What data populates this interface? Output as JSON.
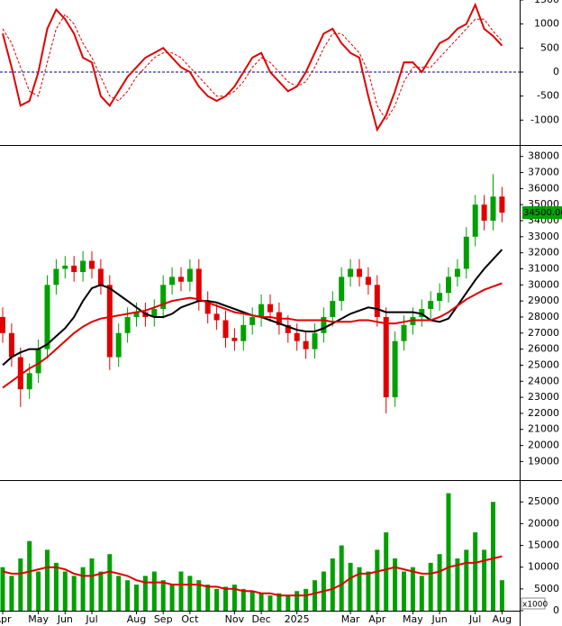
{
  "chart_data": [
    {
      "type": "line",
      "ylim": [
        -1500,
        1500
      ],
      "yticks": [
        1500,
        1000,
        500,
        0,
        -500,
        -1000
      ],
      "reference_line": {
        "value": 0,
        "color": "#00008b"
      },
      "series": [
        {
          "color": "#e00000",
          "style": "solid",
          "values": [
            800,
            100,
            -700,
            -600,
            0,
            900,
            1300,
            1100,
            800,
            300,
            200,
            -500,
            -700,
            -400,
            -100,
            100,
            300,
            400,
            500,
            300,
            100,
            0,
            -300,
            -500,
            -600,
            -500,
            -300,
            0,
            300,
            400,
            0,
            -200,
            -400,
            -300,
            0,
            400,
            800,
            900,
            600,
            400,
            300,
            -500,
            -1200,
            -900,
            -400,
            200,
            200,
            0,
            300,
            600,
            700,
            900,
            1000,
            1400,
            900,
            750,
            550
          ]
        },
        {
          "color": "#e00000",
          "style": "dashed",
          "values": [
            900,
            600,
            100,
            -400,
            -500,
            200,
            900,
            1200,
            1000,
            600,
            300,
            -100,
            -500,
            -600,
            -400,
            -100,
            100,
            300,
            400,
            400,
            300,
            100,
            -100,
            -300,
            -500,
            -500,
            -400,
            -200,
            100,
            300,
            200,
            0,
            -200,
            -300,
            -200,
            100,
            500,
            800,
            800,
            600,
            400,
            0,
            -700,
            -1000,
            -700,
            -200,
            100,
            100,
            100,
            300,
            500,
            700,
            900,
            1100,
            1100,
            850,
            650
          ]
        }
      ]
    },
    {
      "type": "candlestick",
      "ylim": [
        17900,
        38600
      ],
      "yticks": [
        38000,
        37000,
        36000,
        35000,
        34000,
        33000,
        32000,
        31000,
        30000,
        29000,
        28000,
        27000,
        26000,
        25000,
        24000,
        23000,
        22000,
        21000,
        20000,
        19000
      ],
      "up_color": "#00a000",
      "down_color": "#e00000",
      "last_value_label": {
        "value": 34500,
        "label": "34500.00",
        "color": "#00a000"
      },
      "open": [
        28000,
        27000,
        25500,
        23500,
        24500,
        26000,
        30000,
        31000,
        31200,
        30800,
        31500,
        31000,
        30000,
        25500,
        27000,
        28000,
        28300,
        28000,
        28500,
        30000,
        30500,
        30200,
        31000,
        29000,
        28200,
        27800,
        26700,
        26500,
        27500,
        28000,
        28800,
        28300,
        27500,
        27000,
        26500,
        26000,
        27000,
        28000,
        29000,
        30500,
        31000,
        30500,
        30000,
        28000,
        23000,
        26500,
        27500,
        28000,
        28500,
        29000,
        29500,
        30500,
        31000,
        33000,
        35000,
        34000,
        35500
      ],
      "high": [
        28600,
        27600,
        26100,
        25100,
        26600,
        30600,
        31600,
        31800,
        31800,
        32100,
        32100,
        31600,
        30600,
        27600,
        28600,
        28900,
        28900,
        29100,
        30600,
        31100,
        31100,
        31600,
        31600,
        29600,
        28800,
        28400,
        27300,
        28100,
        28600,
        29400,
        29400,
        28900,
        28100,
        27600,
        27100,
        27600,
        28600,
        29600,
        31100,
        31600,
        31600,
        31100,
        30600,
        28600,
        27100,
        28100,
        28600,
        29100,
        29600,
        30100,
        31100,
        31600,
        33600,
        35600,
        35600,
        36900,
        36100
      ],
      "low": [
        26400,
        24900,
        22400,
        22900,
        23900,
        25400,
        29400,
        30400,
        30200,
        30200,
        30400,
        29400,
        24700,
        24900,
        26400,
        27400,
        27400,
        27400,
        27900,
        29400,
        29600,
        29600,
        28400,
        27600,
        27200,
        26100,
        25900,
        25900,
        26900,
        27400,
        27700,
        26900,
        26400,
        25900,
        25400,
        25400,
        26400,
        27400,
        28400,
        29900,
        29900,
        29400,
        27400,
        22000,
        22400,
        25900,
        26900,
        27400,
        27900,
        28400,
        28900,
        29900,
        30400,
        32400,
        33400,
        33400,
        33900
      ],
      "close": [
        27000,
        25500,
        23500,
        24500,
        26000,
        30000,
        31000,
        31200,
        30800,
        31500,
        31000,
        30000,
        25500,
        27000,
        28000,
        28300,
        28000,
        28500,
        30000,
        30500,
        30200,
        31000,
        29000,
        28200,
        27800,
        26700,
        26500,
        27500,
        28000,
        28800,
        28300,
        27500,
        27000,
        26500,
        26000,
        27000,
        28000,
        29000,
        30500,
        31000,
        30500,
        30000,
        28000,
        23000,
        26500,
        27500,
        28000,
        28500,
        29000,
        29500,
        30500,
        31000,
        33000,
        35000,
        34000,
        35500,
        34500
      ],
      "overlays": [
        {
          "color": "#000000",
          "values": [
            25000,
            25500,
            25800,
            26000,
            26000,
            26300,
            26800,
            27300,
            28000,
            29000,
            29800,
            30000,
            29800,
            29400,
            29000,
            28600,
            28200,
            28000,
            28000,
            28200,
            28600,
            28800,
            29000,
            29000,
            28900,
            28700,
            28500,
            28300,
            28100,
            28000,
            27800,
            27600,
            27400,
            27200,
            27100,
            27100,
            27300,
            27600,
            27900,
            28200,
            28400,
            28600,
            28500,
            28300,
            28300,
            28300,
            28300,
            28200,
            27800,
            27700,
            27900,
            28700,
            29500,
            30300,
            31000,
            31600,
            32200
          ]
        },
        {
          "color": "#e00000",
          "values": [
            23600,
            24000,
            24400,
            24800,
            25100,
            25500,
            26000,
            26500,
            27000,
            27400,
            27700,
            27900,
            28000,
            28100,
            28200,
            28300,
            28400,
            28600,
            28800,
            29000,
            29100,
            29200,
            29100,
            28900,
            28700,
            28500,
            28300,
            28200,
            28100,
            28000,
            28000,
            27900,
            27900,
            27800,
            27800,
            27800,
            27800,
            27700,
            27700,
            27700,
            27800,
            27800,
            27700,
            27600,
            27600,
            27700,
            27800,
            27800,
            27800,
            28000,
            28300,
            28700,
            29100,
            29400,
            29700,
            29900,
            30100
          ]
        }
      ]
    },
    {
      "type": "bar",
      "ylim": [
        0,
        29600
      ],
      "yticks": [
        25000,
        20000,
        15000,
        10000,
        5000,
        0
      ],
      "unit_label": "x1000",
      "color": "#00a000",
      "categories": [
        "Apr",
        null,
        null,
        null,
        "May",
        null,
        null,
        "Jun",
        null,
        null,
        "Jul",
        null,
        null,
        null,
        null,
        "Aug",
        null,
        null,
        "Sep",
        null,
        null,
        "Oct",
        null,
        null,
        null,
        null,
        "Nov",
        null,
        null,
        "Dec",
        null,
        null,
        null,
        "2025",
        null,
        null,
        null,
        null,
        null,
        "Mar",
        null,
        null,
        "Apr",
        null,
        null,
        null,
        "May",
        null,
        null,
        "Jun",
        null,
        null,
        null,
        "Jul",
        null,
        null,
        "Aug"
      ],
      "values": [
        10000,
        8000,
        12000,
        16000,
        9000,
        14000,
        11000,
        9000,
        8000,
        10000,
        12000,
        9000,
        13000,
        8000,
        7000,
        6000,
        8000,
        9000,
        7000,
        6000,
        9000,
        8000,
        7000,
        6000,
        5000,
        5500,
        6000,
        5000,
        4500,
        4000,
        3500,
        4000,
        3500,
        4500,
        5000,
        7000,
        9000,
        12000,
        15000,
        11000,
        10000,
        9000,
        14000,
        18000,
        12000,
        9000,
        10000,
        8000,
        11000,
        13000,
        27000,
        12000,
        14000,
        18000,
        14000,
        25000,
        7000
      ],
      "overlays": [
        {
          "color": "#e00000",
          "values": [
            9000,
            8500,
            8500,
            9000,
            9500,
            10000,
            10000,
            9500,
            8500,
            8000,
            8000,
            8500,
            9000,
            8500,
            8000,
            7000,
            6500,
            6500,
            6500,
            6000,
            6000,
            6000,
            6000,
            5500,
            5500,
            5000,
            5000,
            4500,
            4500,
            4000,
            4000,
            3500,
            3500,
            3500,
            3500,
            4000,
            4500,
            5000,
            6000,
            7500,
            8500,
            8500,
            9000,
            9500,
            10000,
            9500,
            9000,
            8500,
            8500,
            9000,
            10000,
            10500,
            11000,
            11000,
            11500,
            12000,
            12500
          ]
        }
      ]
    }
  ]
}
